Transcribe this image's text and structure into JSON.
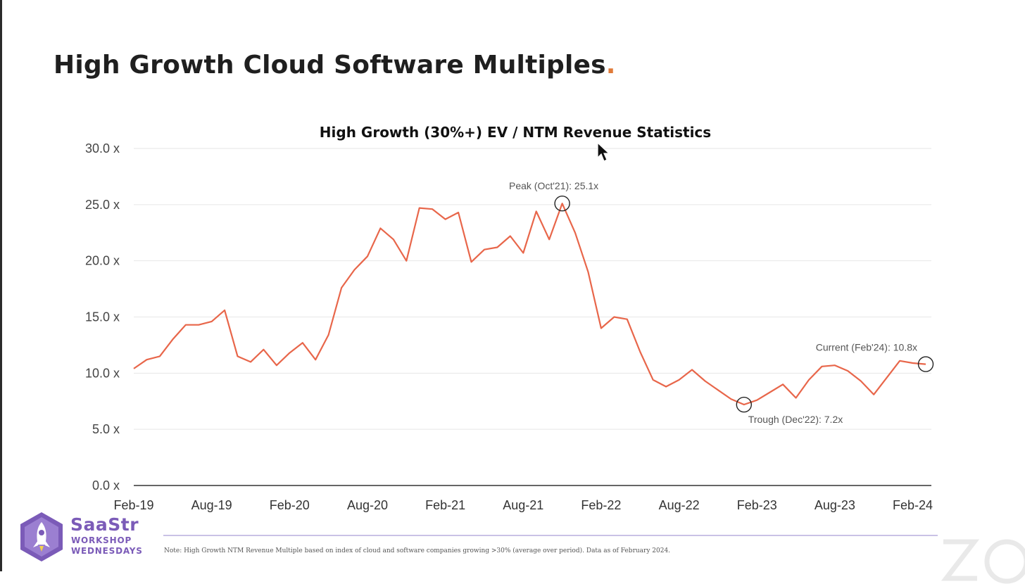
{
  "slide": {
    "title": "High Growth Cloud Software Multiples",
    "title_accent": ".",
    "footnote": "Note: High Growth NTM Revenue Multiple based on index of cloud and software companies growing >30% (average over period). Data as of February 2024."
  },
  "logo": {
    "line1": "SaaStr",
    "line2": "WORKSHOP",
    "line3": "WEDNESDAYS",
    "color": "#7b5bb8"
  },
  "colors": {
    "line": "#e8664a",
    "grid": "#e6e6e6",
    "axis": "#333333",
    "title_accent": "#e07b39"
  },
  "chart_data": {
    "type": "line",
    "title": "High Growth (30%+) EV / NTM Revenue Statistics",
    "xlabel": "",
    "ylabel": "",
    "ylim": [
      0,
      30
    ],
    "yticks": [
      0,
      5,
      10,
      15,
      20,
      25,
      30
    ],
    "ytick_labels": [
      "0.0 x",
      "5.0 x",
      "10.0 x",
      "15.0 x",
      "20.0 x",
      "25.0 x",
      "30.0 x"
    ],
    "x_start": "Feb-19",
    "x_tick_labels": [
      "Feb-19",
      "Aug-19",
      "Feb-20",
      "Aug-20",
      "Feb-21",
      "Aug-21",
      "Feb-22",
      "Aug-22",
      "Feb-23",
      "Aug-23",
      "Feb-24"
    ],
    "grid": true,
    "legend": "none",
    "series": [
      {
        "values": [
          10.4,
          11.2,
          11.5,
          13.0,
          14.3,
          14.3,
          14.6,
          15.6,
          11.5,
          11.0,
          12.1,
          10.7,
          11.8,
          12.7,
          11.2,
          13.4,
          17.6,
          19.2,
          20.4,
          22.9,
          21.9,
          20.0,
          24.7,
          24.6,
          23.7,
          24.3,
          19.9,
          21.0,
          21.2,
          22.2,
          20.7,
          24.4,
          21.9,
          25.1,
          22.5,
          19.0,
          14.0,
          15.0,
          14.8,
          11.9,
          9.4,
          8.8,
          9.4,
          10.3,
          9.3,
          8.5,
          7.7,
          7.2,
          7.6,
          8.3,
          9.0,
          7.8,
          9.4,
          10.6,
          10.7,
          10.2,
          9.3,
          8.1,
          9.6,
          11.1,
          10.9,
          10.8
        ]
      }
    ],
    "annotations": [
      {
        "label": "Peak (Oct'21): 25.1x",
        "index": 33,
        "value": 25.1,
        "position": "above"
      },
      {
        "label": "Trough (Dec'22): 7.2x",
        "index": 47,
        "value": 7.2,
        "position": "below-right"
      },
      {
        "label": "Current (Feb'24): 10.8x",
        "index": 61,
        "value": 10.8,
        "position": "above-left"
      }
    ]
  }
}
